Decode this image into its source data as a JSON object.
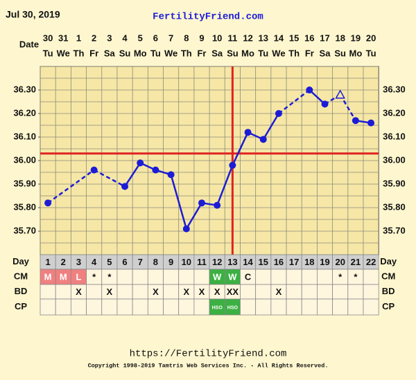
{
  "header": {
    "date": "Jul 30, 2019",
    "site": "FertilityFriend.com",
    "date_label": "Date"
  },
  "chart_data": {
    "type": "line",
    "categories": [
      "30",
      "31",
      "1",
      "2",
      "3",
      "4",
      "5",
      "6",
      "7",
      "8",
      "9",
      "10",
      "11",
      "12",
      "13",
      "14",
      "15",
      "16",
      "17",
      "18",
      "19",
      "20"
    ],
    "weekdays": [
      "Tu",
      "We",
      "Th",
      "Fr",
      "Sa",
      "Su",
      "Mo",
      "Tu",
      "We",
      "Th",
      "Fr",
      "Sa",
      "Su",
      "Mo",
      "Tu",
      "We",
      "Th",
      "Fr",
      "Sa",
      "Su",
      "Mo",
      "Tu"
    ],
    "series": [
      {
        "name": "Temperature",
        "color": "#1c1cd6",
        "values": [
          35.82,
          null,
          null,
          35.96,
          null,
          35.89,
          35.99,
          35.96,
          35.94,
          35.71,
          35.82,
          35.81,
          35.98,
          36.12,
          36.09,
          36.2,
          null,
          36.3,
          36.24,
          36.28,
          36.17,
          36.16
        ],
        "open_points": [
          19
        ]
      }
    ],
    "ylim": [
      35.6,
      36.4
    ],
    "yticks": [
      {
        "value": 35.7,
        "label": "35.70"
      },
      {
        "value": 35.8,
        "label": "35.80"
      },
      {
        "value": 35.9,
        "label": "35.90"
      },
      {
        "value": 36.0,
        "label": "36.00"
      },
      {
        "value": 36.1,
        "label": "36.10"
      },
      {
        "value": 36.2,
        "label": "36.20"
      },
      {
        "value": 36.3,
        "label": "36.30"
      }
    ],
    "ygrid": [
      35.6,
      35.65,
      35.7,
      35.75,
      35.8,
      35.85,
      35.9,
      35.95,
      36.0,
      36.05,
      36.1,
      36.15,
      36.2,
      36.25,
      36.3,
      36.35,
      36.4
    ],
    "coverline": 36.03,
    "coverline_color": "#e02222",
    "ovulation_day": 13
  },
  "table": {
    "rows": [
      {
        "label": "Day",
        "cells": [
          1,
          2,
          3,
          4,
          5,
          6,
          7,
          8,
          9,
          10,
          11,
          12,
          13,
          14,
          15,
          16,
          17,
          18,
          19,
          20,
          21,
          22
        ],
        "colors": []
      },
      {
        "label": "CM",
        "cells": [
          "M",
          "M",
          "L",
          "*",
          "*",
          null,
          null,
          null,
          null,
          null,
          null,
          "W",
          "W",
          "C",
          null,
          null,
          null,
          null,
          null,
          "*",
          "*",
          null
        ],
        "colors": [
          "#f08080",
          "#f08080",
          "#f08080",
          null,
          null,
          null,
          null,
          null,
          null,
          null,
          null,
          "#3cb043",
          "#3cb043",
          null,
          null,
          null,
          null,
          null,
          null,
          null,
          null,
          null
        ]
      },
      {
        "label": "BD",
        "cells": [
          null,
          null,
          "X",
          null,
          "X",
          null,
          null,
          "X",
          null,
          "X",
          "X",
          "X",
          "XX",
          null,
          null,
          "X",
          null,
          null,
          null,
          null,
          null,
          null
        ],
        "colors": []
      },
      {
        "label": "CP",
        "cells": [
          null,
          null,
          null,
          null,
          null,
          null,
          null,
          null,
          null,
          null,
          null,
          "HSO",
          "HSO",
          null,
          null,
          null,
          null,
          null,
          null,
          null,
          null,
          null
        ],
        "colors": [
          null,
          null,
          null,
          null,
          null,
          null,
          null,
          null,
          null,
          null,
          null,
          "#3cb043",
          "#3cb043",
          null,
          null,
          null,
          null,
          null,
          null,
          null,
          null,
          null
        ]
      }
    ]
  },
  "footer": {
    "url": "https://FertilityFriend.com",
    "copyright": "Copyright 1998-2019 Tamtris Web Services Inc. - All Rights Reserved."
  }
}
